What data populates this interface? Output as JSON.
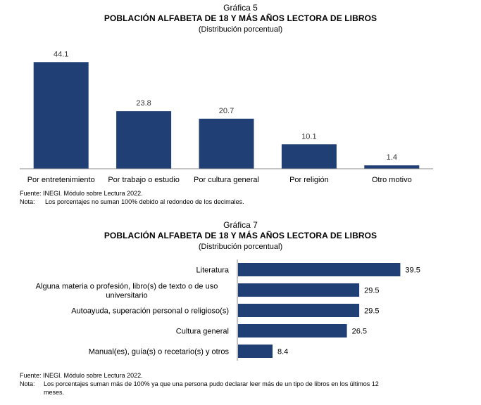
{
  "chart_data": [
    {
      "type": "bar",
      "orientation": "vertical",
      "figure_number": "Gráfica 5",
      "title": "POBLACIÓN ALFABETA DE 18 Y MÁS AÑOS LECTORA DE LIBROS",
      "subtitle": "(Distribución porcentual)",
      "categories": [
        "Por entretenimiento",
        "Por trabajo o estudio",
        "Por cultura general",
        "Por religión",
        "Otro motivo"
      ],
      "values": [
        44.1,
        23.8,
        20.7,
        10.1,
        1.4
      ],
      "data_labels": [
        "44.1",
        "23.8",
        "20.7",
        "10.1",
        "1.4"
      ],
      "ylim": [
        0,
        50
      ],
      "xlabel": "",
      "ylabel": "",
      "grid": false,
      "bar_color": "#1f3f75",
      "source": "Fuente: INEGI. Módulo sobre Lectura 2022.",
      "note_label": "Nota:",
      "note_text": "Los porcentajes no suman 100% debido al redondeo de los decimales."
    },
    {
      "type": "bar",
      "orientation": "horizontal",
      "figure_number": "Gráfica 7",
      "title": "POBLACIÓN ALFABETA DE 18 Y MÁS AÑOS LECTORA DE LIBROS",
      "subtitle": "(Distribución porcentual)",
      "categories": [
        [
          "Literatura"
        ],
        [
          "Alguna materia o profesión, libro(s) de texto o de uso",
          "universitario"
        ],
        [
          "Autoayuda, superación personal o religioso(s)"
        ],
        [
          "Cultura general"
        ],
        [
          "Manual(es), guía(s) o recetario(s) y otros"
        ]
      ],
      "values": [
        39.5,
        29.5,
        29.5,
        26.5,
        8.4
      ],
      "data_labels": [
        "39.5",
        "29.5",
        "29.5",
        "26.5",
        "8.4"
      ],
      "xlim": [
        0,
        42
      ],
      "xlabel": "",
      "ylabel": "",
      "grid": false,
      "bar_color": "#1f3f75",
      "source": "Fuente: INEGI. Módulo sobre Lectura 2022.",
      "note_label": "Nota:",
      "note_text": "Los porcentajes suman más de 100% ya que una persona pudo declarar leer más de un tipo de libros en los últimos 12",
      "note_text_2": "meses."
    }
  ]
}
